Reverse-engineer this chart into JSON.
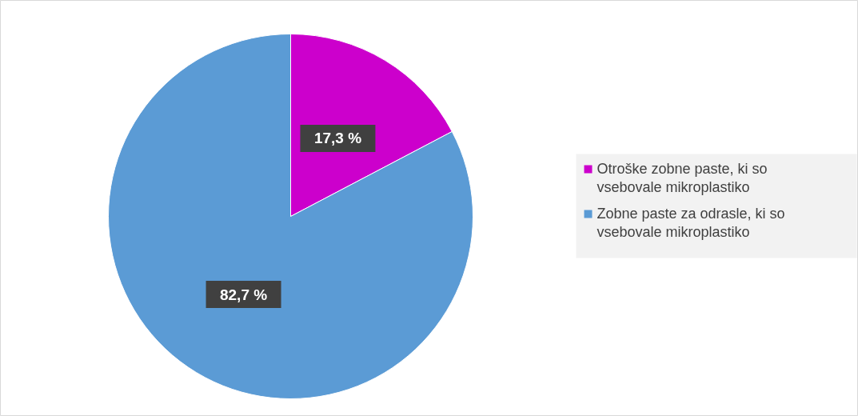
{
  "chart_data": {
    "type": "pie",
    "categories": [
      "Otroške zobne paste, ki so vsebovale mikroplastiko",
      "Zobne paste za odrasle, ki so vsebovale mikroplastiko"
    ],
    "values": [
      17.3,
      82.7
    ],
    "colors": [
      "#cc00cc",
      "#5b9bd5"
    ],
    "value_labels": [
      "17,3 %",
      "82,7 %"
    ],
    "legend": "right"
  }
}
